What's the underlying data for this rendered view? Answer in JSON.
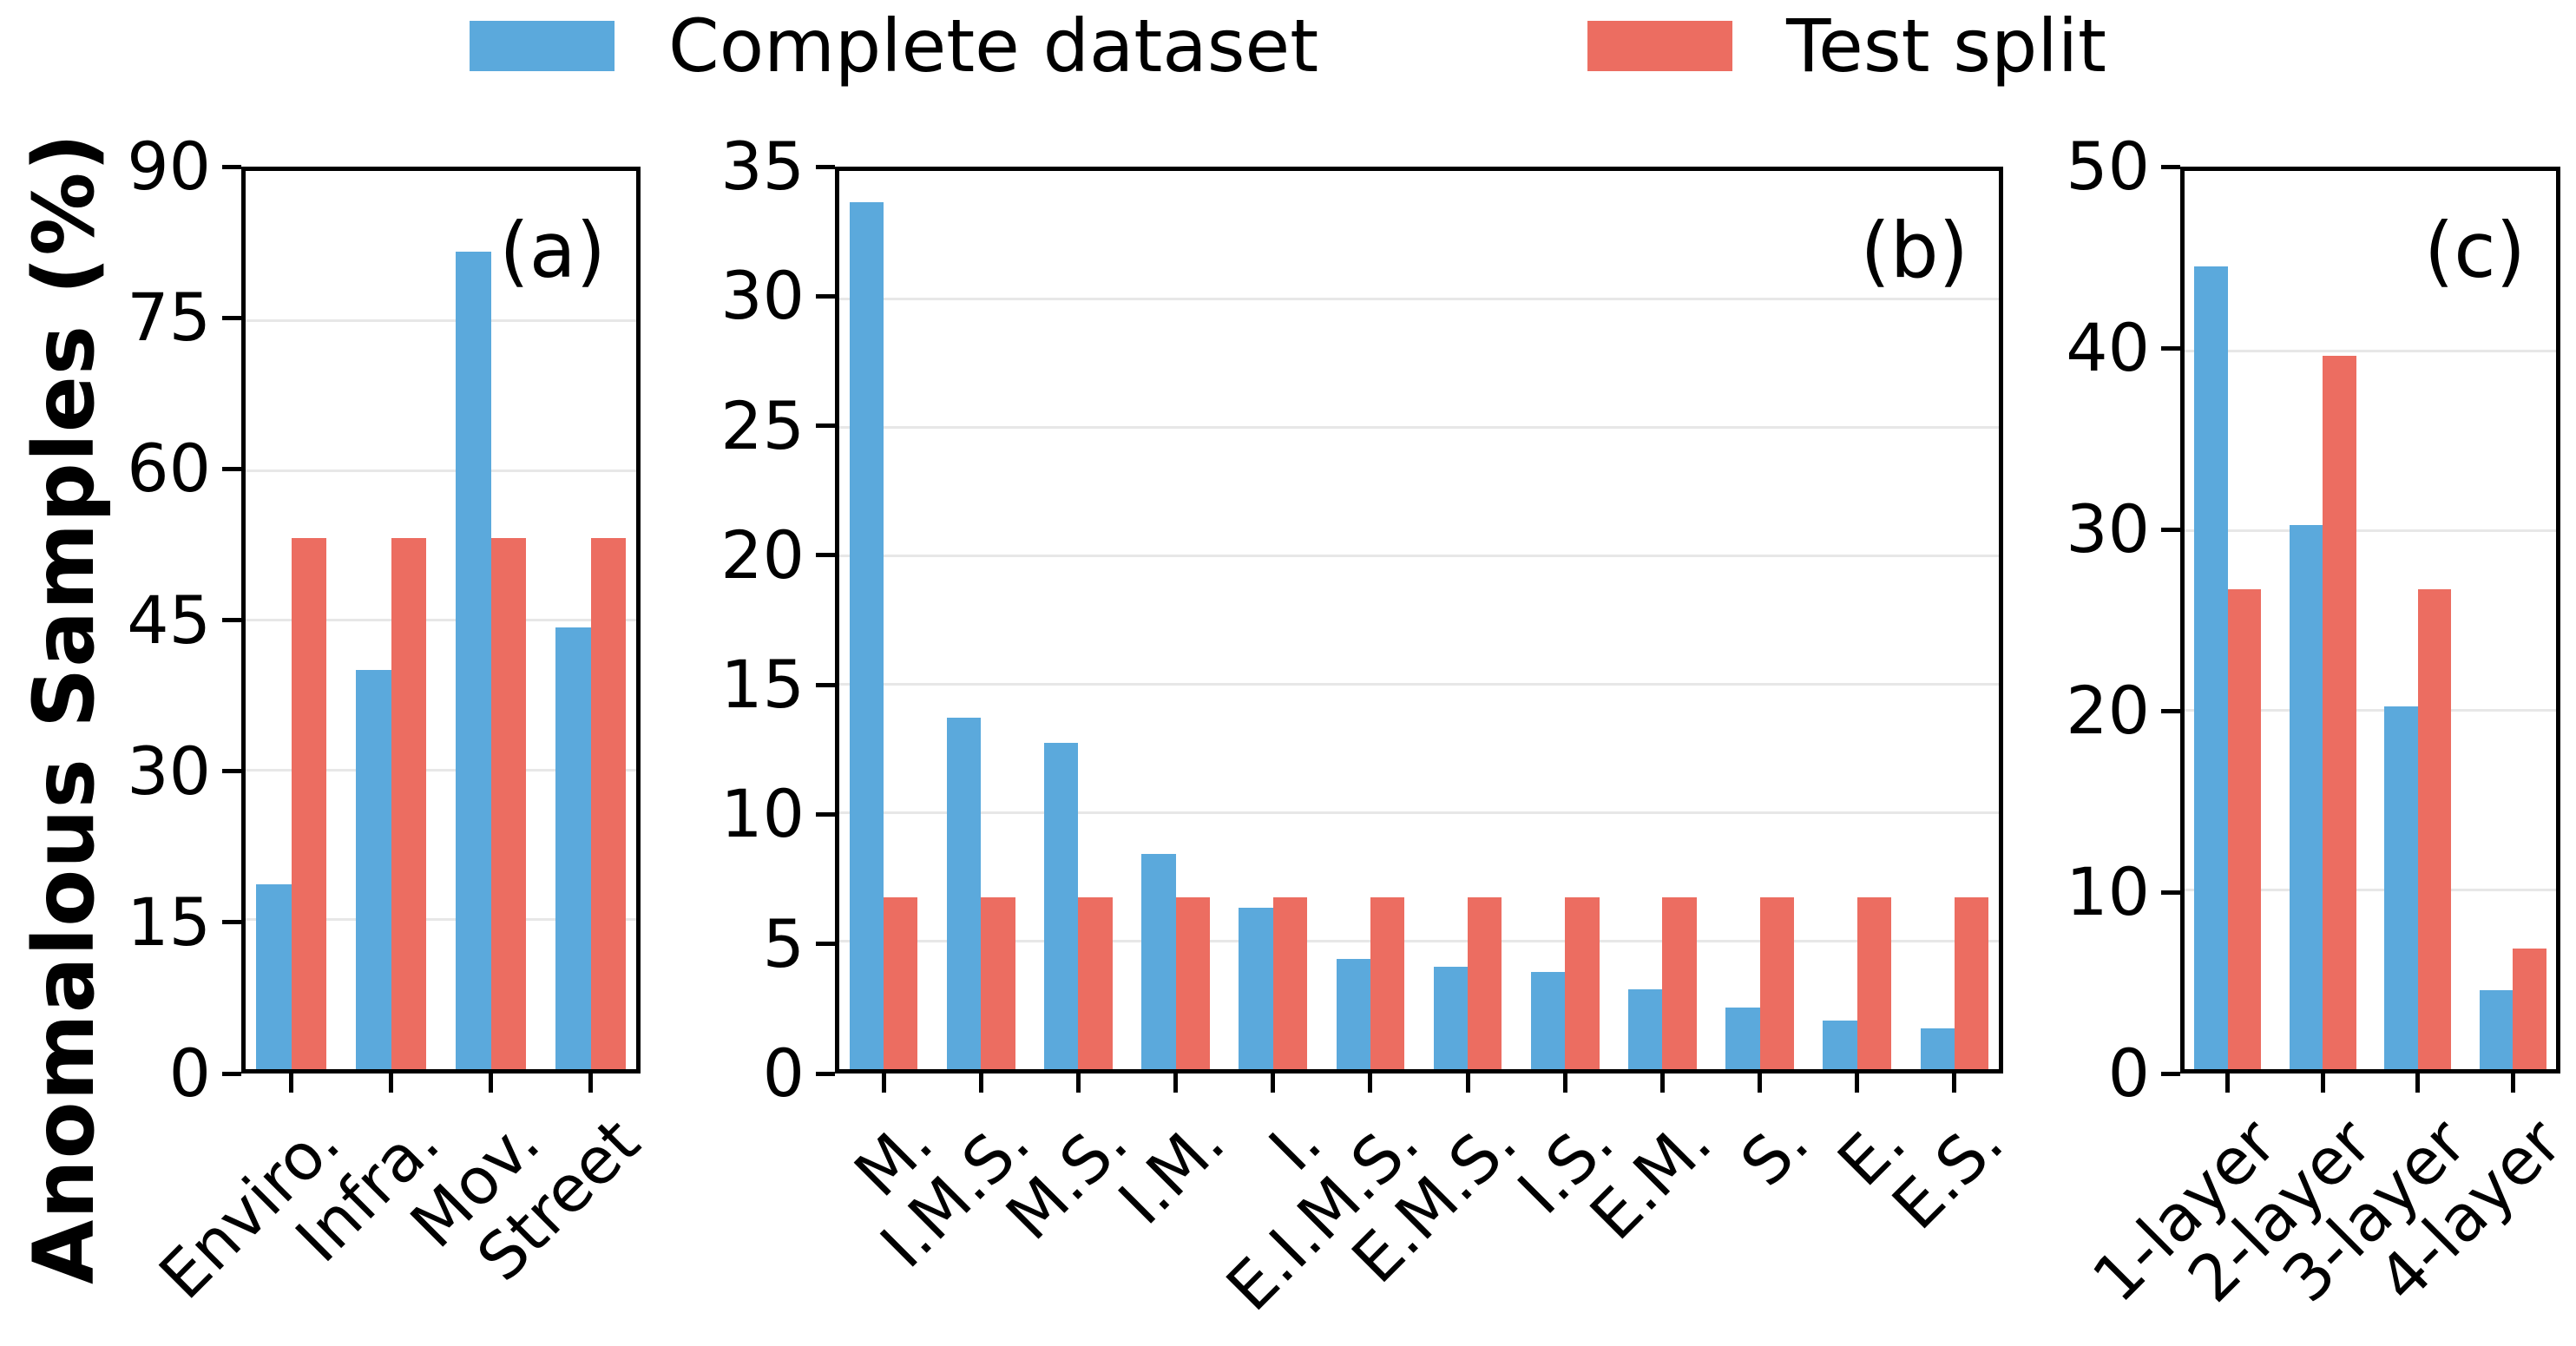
{
  "figure": {
    "ylabel": "Anomalous Samples (%)"
  },
  "legend": {
    "position": "top-center",
    "items": [
      {
        "label": "Complete dataset",
        "color": "#5BA9DC"
      },
      {
        "label": "Test split",
        "color": "#EC6D61"
      }
    ]
  },
  "chart_data": [
    {
      "type": "bar",
      "panel": "(a)",
      "categories": [
        "Enviro.",
        "Infra.",
        "Mov.",
        "Street"
      ],
      "series": [
        {
          "name": "Complete dataset",
          "color": "#5BA9DC",
          "values": [
            18.5,
            40.0,
            81.9,
            44.3
          ]
        },
        {
          "name": "Test split",
          "color": "#EC6D61",
          "values": [
            53.2,
            53.2,
            53.2,
            53.2
          ]
        }
      ],
      "ylim": [
        0,
        90
      ],
      "yticks": [
        0,
        15,
        30,
        45,
        60,
        75,
        90
      ],
      "grid": true,
      "xtick_rotation": 45
    },
    {
      "type": "bar",
      "panel": "(b)",
      "categories": [
        "M.",
        "I.M.S.",
        "M.S.",
        "I.M.",
        "I.",
        "E.I.M.S.",
        "E.M.S.",
        "I.S.",
        "E.M.",
        "S.",
        "E.",
        "E.S."
      ],
      "series": [
        {
          "name": "Complete dataset",
          "color": "#5BA9DC",
          "values": [
            33.8,
            13.7,
            12.7,
            8.4,
            6.3,
            4.3,
            4.0,
            3.8,
            3.1,
            2.4,
            1.9,
            1.6
          ]
        },
        {
          "name": "Test split",
          "color": "#EC6D61",
          "values": [
            6.7,
            6.7,
            6.7,
            6.7,
            6.7,
            6.7,
            6.7,
            6.7,
            6.7,
            6.7,
            6.7,
            6.7
          ]
        }
      ],
      "ylim": [
        0,
        35
      ],
      "yticks": [
        0,
        5,
        10,
        15,
        20,
        25,
        30,
        35
      ],
      "grid": true,
      "xtick_rotation": 45
    },
    {
      "type": "bar",
      "panel": "(c)",
      "categories": [
        "1-layer",
        "2-layer",
        "3-layer",
        "4-layer"
      ],
      "series": [
        {
          "name": "Complete dataset",
          "color": "#5BA9DC",
          "values": [
            44.7,
            30.3,
            20.2,
            4.4
          ]
        },
        {
          "name": "Test split",
          "color": "#EC6D61",
          "values": [
            26.7,
            39.7,
            26.7,
            6.7
          ]
        }
      ],
      "ylim": [
        0,
        50
      ],
      "yticks": [
        0,
        10,
        20,
        30,
        40,
        50
      ],
      "grid": true,
      "xtick_rotation": 45
    }
  ]
}
